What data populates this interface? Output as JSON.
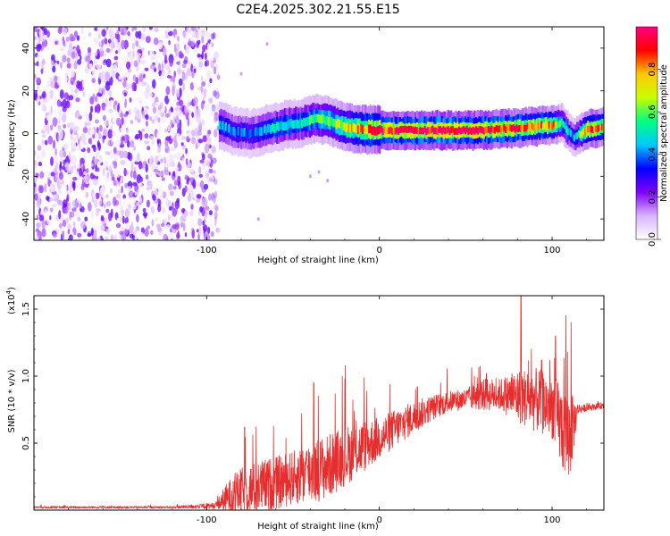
{
  "title": "C2E4.2025.302.21.55.E15",
  "chart_data": [
    {
      "type": "heatmap",
      "id": "spectrogram",
      "xlabel": "Height of straight line (km)",
      "ylabel": "Frequency (Hz)",
      "xlim": [
        -200,
        130
      ],
      "ylim": [
        -50,
        50
      ],
      "xticks": [
        -100,
        0,
        100
      ],
      "yticks": [
        -40,
        -20,
        0,
        20,
        40
      ],
      "colorbar": {
        "label": "Normalized spectral amplitude",
        "range": [
          0,
          1
        ],
        "ticks": [
          "0.0",
          "0.2",
          "0.4",
          "0.6",
          "0.8"
        ],
        "stops": [
          "#ffffff",
          "#d9b3ff",
          "#8000ff",
          "#0000ff",
          "#00c8ff",
          "#00ff80",
          "#c8ff00",
          "#ffc800",
          "#ff0000",
          "#ff0080"
        ]
      },
      "noise_region_x": [
        -200,
        -93
      ],
      "ridge": {
        "x": [
          -93,
          -85,
          -75,
          -65,
          -55,
          -45,
          -38,
          -30,
          -20,
          -10,
          0,
          20,
          40,
          55,
          70,
          85,
          100,
          105,
          108,
          112,
          120,
          130
        ],
        "f": [
          4,
          1,
          0,
          2,
          4,
          5,
          7,
          6,
          3,
          2,
          1.5,
          1.5,
          1.5,
          1.5,
          2,
          3,
          4,
          5,
          2,
          -2,
          2,
          3
        ],
        "amp": [
          0.45,
          0.4,
          0.4,
          0.45,
          0.5,
          0.5,
          0.55,
          0.6,
          0.7,
          0.8,
          0.9,
          0.95,
          0.95,
          0.95,
          0.9,
          0.85,
          0.8,
          0.55,
          0.5,
          0.4,
          0.85,
          0.8
        ]
      }
    },
    {
      "type": "line",
      "id": "snr",
      "xlabel": "Height of straight line (km)",
      "ylabel": "SNR (10 * v/v)",
      "multiplier": "(x10",
      "multiplier_exp": "4",
      "xlim": [
        -200,
        130
      ],
      "ylim": [
        0,
        1.6
      ],
      "xticks": [
        -100,
        0,
        100
      ],
      "yticks": [
        0.5,
        1.0,
        1.5
      ],
      "ytick_labels": [
        "0.5",
        "1.0",
        "1.5"
      ],
      "color": "#e62e2e",
      "envelope": {
        "x": [
          -200,
          -120,
          -95,
          -88,
          -80,
          -70,
          -60,
          -50,
          -40,
          -30,
          -20,
          -10,
          0,
          10,
          20,
          30,
          40,
          50,
          60,
          70,
          80,
          90,
          100,
          105,
          110,
          115,
          120,
          130
        ],
        "base": [
          0.02,
          0.02,
          0.03,
          0.08,
          0.12,
          0.15,
          0.18,
          0.22,
          0.26,
          0.3,
          0.38,
          0.45,
          0.52,
          0.6,
          0.68,
          0.75,
          0.8,
          0.82,
          0.85,
          0.85,
          0.83,
          0.8,
          0.75,
          0.6,
          0.5,
          0.75,
          0.76,
          0.78
        ],
        "noise": [
          0.01,
          0.01,
          0.03,
          0.15,
          0.22,
          0.25,
          0.25,
          0.25,
          0.3,
          0.3,
          0.28,
          0.25,
          0.2,
          0.18,
          0.15,
          0.12,
          0.1,
          0.1,
          0.15,
          0.15,
          0.25,
          0.3,
          0.3,
          0.4,
          0.45,
          0.05,
          0.03,
          0.03
        ]
      },
      "peaks": [
        {
          "x": -78,
          "y": 0.62
        },
        {
          "x": -45,
          "y": 0.72
        },
        {
          "x": -38,
          "y": 0.95
        },
        {
          "x": -20,
          "y": 0.98
        },
        {
          "x": 22,
          "y": 0.92
        },
        {
          "x": 55,
          "y": 1.0
        },
        {
          "x": 62,
          "y": 1.02
        },
        {
          "x": 82,
          "y": 1.6
        },
        {
          "x": 88,
          "y": 1.2
        },
        {
          "x": 94,
          "y": 1.12
        },
        {
          "x": 102,
          "y": 1.3
        },
        {
          "x": 108,
          "y": 1.45
        },
        {
          "x": 111,
          "y": 1.4
        }
      ]
    }
  ]
}
